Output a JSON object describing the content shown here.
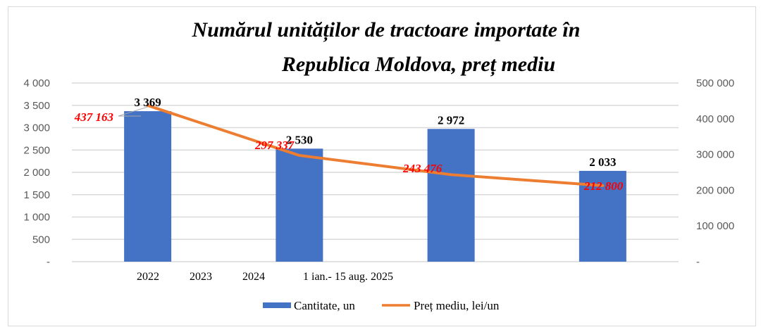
{
  "chart_data": {
    "type": "bar",
    "title_lines": [
      "Numărul unităților de tractoare importate în",
      "Republica Moldova, preț mediu"
    ],
    "categories": [
      "2022",
      "2023",
      "2024",
      "1 ian.- 15 aug. 2025"
    ],
    "series": [
      {
        "name": "Cantitate, un",
        "type": "bar",
        "axis": "left",
        "color": "#4472c4",
        "values": [
          3369,
          2530,
          2972,
          2033
        ],
        "labels": [
          "3 369",
          "2 530",
          "2 972",
          "2 033"
        ]
      },
      {
        "name": "Preț mediu, lei/un",
        "type": "line",
        "axis": "right",
        "color": "#ed7d31",
        "values": [
          437163,
          297337,
          243476,
          212800
        ],
        "labels": [
          "437 163",
          "297 337",
          "243 476",
          "212 800"
        ],
        "label_color": "#ff0000"
      }
    ],
    "y_left": {
      "range": [
        0,
        4000
      ],
      "ticks": [
        0,
        500,
        1000,
        1500,
        2000,
        2500,
        3000,
        3500,
        4000
      ],
      "tick_labels": [
        "-",
        "500",
        "1 000",
        "1 500",
        "2 000",
        "2 500",
        "3 000",
        "3 500",
        "4 000"
      ]
    },
    "y_right": {
      "range": [
        0,
        500000
      ],
      "ticks": [
        0,
        100000,
        200000,
        300000,
        400000,
        500000
      ],
      "tick_labels": [
        "-",
        "100 000",
        "200 000",
        "300 000",
        "400 000",
        "500 000"
      ]
    },
    "grid": true,
    "legend": {
      "position": "bottom",
      "entries": [
        "Cantitate, un",
        "Preț mediu, lei/un"
      ]
    },
    "xlabel": "",
    "ylabel": ""
  }
}
